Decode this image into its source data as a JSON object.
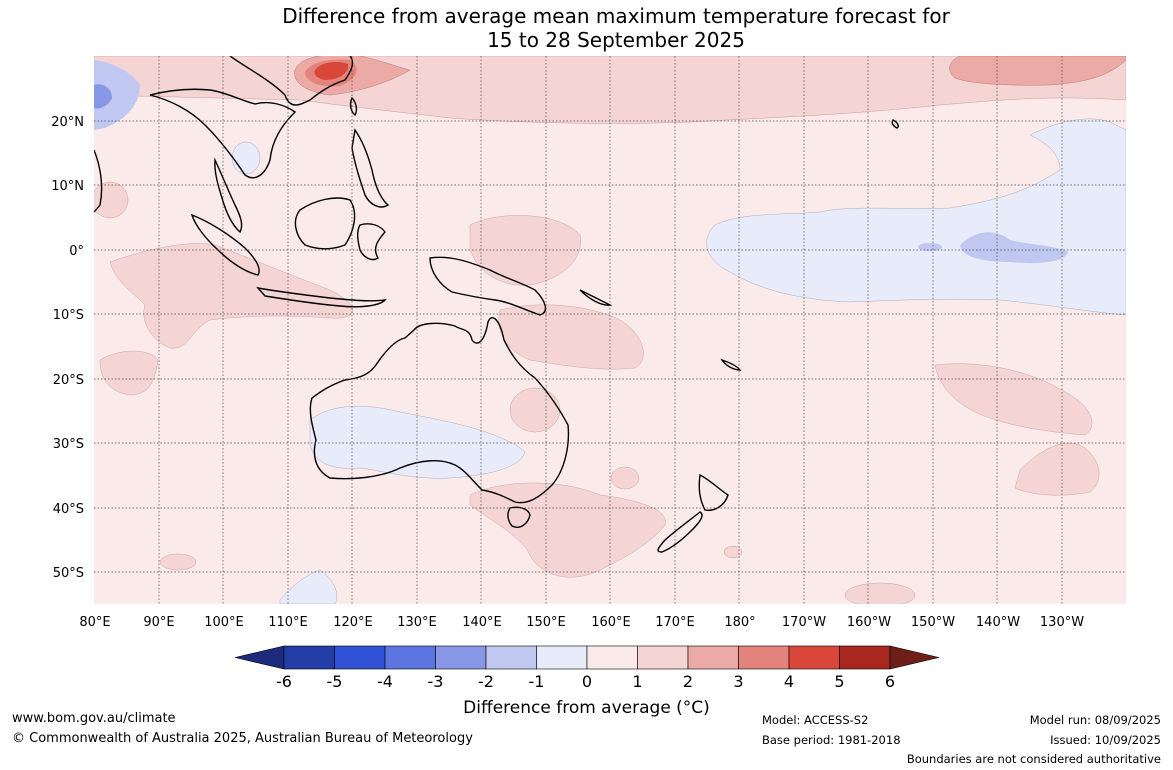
{
  "title": {
    "line1": "Difference from average mean maximum temperature forecast for",
    "line2": "15 to 28 September 2025"
  },
  "map": {
    "lat_labels": [
      "20°N",
      "10°N",
      "0°",
      "10°S",
      "20°S",
      "30°S",
      "40°S",
      "50°S"
    ],
    "lon_labels": [
      "80°E",
      "90°E",
      "100°E",
      "110°E",
      "120°E",
      "130°E",
      "140°E",
      "150°E",
      "160°E",
      "170°E",
      "180°",
      "170°W",
      "160°W",
      "150°W",
      "140°W",
      "130°W"
    ],
    "gridlines": true,
    "colors": {
      "near_zero_warm": "#fbeaea",
      "warm_1_2": "#f4d5d3",
      "warm_2_3": "#ebaaa6",
      "warm_3_4": "#e3837c",
      "warm_4_5": "#d9473b",
      "cool_0_1": "#e8ebfa",
      "cool_1_2": "#c0c7f1",
      "land_outline": "#000000"
    }
  },
  "colorbar": {
    "ticks": [
      "-6",
      "-5",
      "-4",
      "-3",
      "-2",
      "-1",
      "0",
      "1",
      "2",
      "3",
      "4",
      "5",
      "6"
    ],
    "colors": [
      "#1c2b7c",
      "#243ea8",
      "#3052d6",
      "#5c75e0",
      "#8797e6",
      "#c0c7f1",
      "#e8ebfa",
      "#fbeaea",
      "#f4d5d3",
      "#ebaaa6",
      "#e3837c",
      "#d9473b",
      "#a8281f",
      "#6d1f18"
    ],
    "title": "Difference from average (°C)"
  },
  "footer": {
    "website": "www.bom.gov.au/climate",
    "copyright": "© Commonwealth of Australia 2025, Australian Bureau of Meteorology",
    "model": "Model: ACCESS-S2",
    "base_period": "Base period: 1981-2018",
    "model_run": "Model run: 08/09/2025",
    "issued": "Issued: 10/09/2025",
    "disclaimer": "Boundaries are not considered authoritative"
  }
}
